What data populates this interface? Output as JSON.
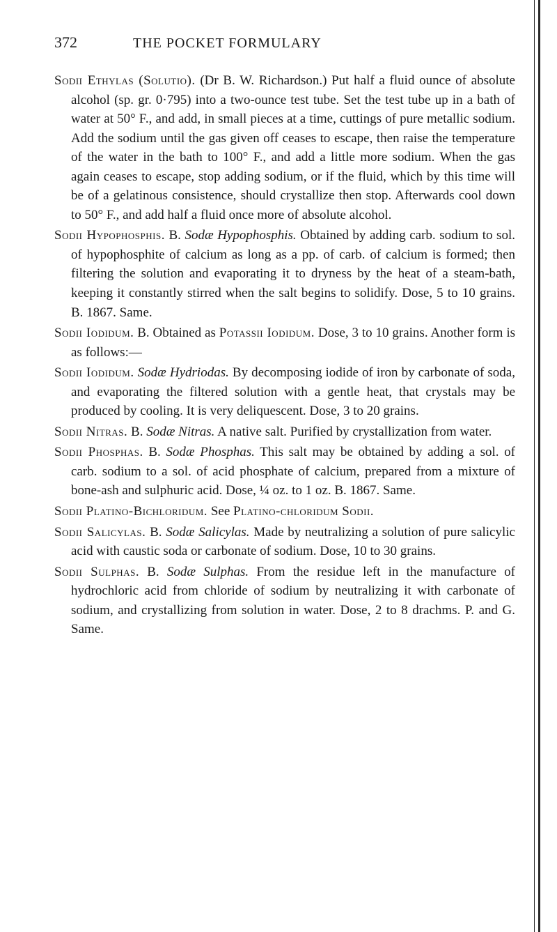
{
  "header": {
    "page_number": "372",
    "title": "THE POCKET FORMULARY"
  },
  "entries": [
    {
      "lead": "Sodii Ethylas (Solutio).",
      "body": " (Dr B. W. Richardson.) Put half a fluid ounce of absolute alcohol (sp. gr. 0·795) into a two-ounce test tube. Set the test tube up in a bath of water at 50° F., and add, in small pieces at a time, cuttings of pure metallic sodium. Add the sodium until the gas given off ceases to escape, then raise the temperature of the water in the bath to 100° F., and add a little more sodium. When the gas again ceases to escape, stop adding sodium, or if the fluid, which by this time will be of a gelatinous consistence, should crystallize then stop. Afterwards cool down to 50° F., and add half a fluid once more of absolute alcohol."
    },
    {
      "lead": "Sodii Hypophosphis.",
      "body_pre": " B. ",
      "italic": "Sodæ Hypophosphis.",
      "body": " Obtained by adding carb. sodium to sol. of hypophosphite of calcium as long as a pp. of carb. of calcium is formed; then filtering the solution and evaporating it to dryness by the heat of a steam-bath, keeping it constantly stirred when the salt begins to solidify. Dose, 5 to 10 grains. B. 1867. Same."
    },
    {
      "lead": "Sodii Iodidum.",
      "body_pre": " B. Obtained as ",
      "smallcaps2": "Potassii Iodidum.",
      "body": " Dose, 3 to 10 grains. Another form is as follows:—"
    },
    {
      "lead": "Sodii Iodidum.",
      "body_pre": " ",
      "italic": "Sodæ Hydriodas.",
      "body": " By decomposing iodide of iron by carbonate of soda, and evaporating the filtered solution with a gentle heat, that crystals may be produced by cooling. It is very deliquescent. Dose, 3 to 20 grains."
    },
    {
      "lead": "Sodii Nitras.",
      "body_pre": " B. ",
      "italic": "Sodæ Nitras.",
      "body": " A native salt. Purified by crystallization from water."
    },
    {
      "lead": "Sodii Phosphas.",
      "body_pre": " B. ",
      "italic": "Sodæ Phosphas.",
      "body": " This salt may be obtained by adding a sol. of carb. sodium to a sol. of acid phosphate of calcium, prepared from a mixture of bone-ash and sulphuric acid. Dose, ¼ oz. to 1 oz. B. 1867. Same."
    },
    {
      "lead": "Sodii Platino-Bichloridum.",
      "body_pre": " See ",
      "smallcaps2": "Platino-chloridum Sodii.",
      "body": ""
    },
    {
      "lead": "Sodii Salicylas.",
      "body_pre": " B. ",
      "italic": "Sodæ Salicylas.",
      "body": " Made by neutralizing a solution of pure salicylic acid with caustic soda or carbonate of sodium. Dose, 10 to 30 grains."
    },
    {
      "lead": "Sodii Sulphas.",
      "body_pre": " B. ",
      "italic": "Sodæ Sulphas.",
      "body": " From the residue left in the manufacture of hydrochloric acid from chloride of sodium by neutralizing it with carbonate of sodium, and crystallizing from solution in water. Dose, 2 to 8 drachms. P. and G. Same."
    }
  ]
}
